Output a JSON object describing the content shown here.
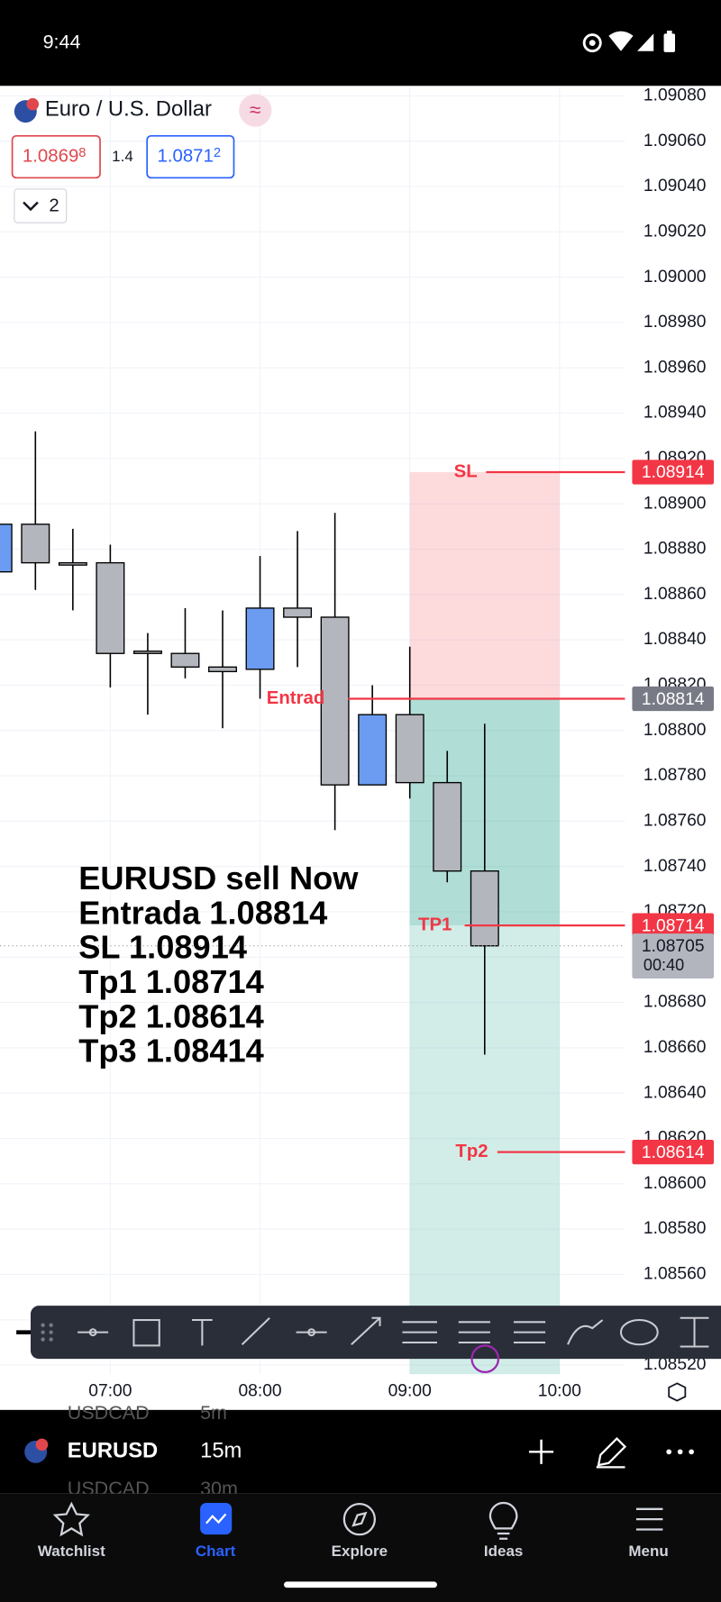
{
  "status_bar": {
    "time": "9:44"
  },
  "header": {
    "symbol_name": "Euro / U.S. Dollar",
    "bid": {
      "main": "1.0869",
      "pip": "8"
    },
    "spread": "1.4",
    "ask": {
      "main": "1.0871",
      "pip": "2"
    },
    "indicator_count": "2"
  },
  "chart_data": {
    "type": "candlestick",
    "categories": [
      null,
      null,
      null,
      null,
      "07:00",
      null,
      null,
      null,
      "08:00",
      null,
      null,
      null,
      "09:00",
      null,
      null,
      null,
      "10:00"
    ],
    "open": [
      null,
      1.0887,
      1.08891,
      1.08874,
      1.08874,
      1.08835,
      1.08834,
      1.08828,
      1.08827,
      1.08854,
      1.0885,
      1.08776,
      1.08807,
      1.08777,
      1.08738,
      null,
      null
    ],
    "high": [
      null,
      1.08893,
      1.08932,
      1.08889,
      1.08882,
      1.08843,
      1.08854,
      1.08853,
      1.08877,
      1.08888,
      1.08896,
      1.0882,
      1.08837,
      1.08791,
      1.08803,
      null,
      null
    ],
    "low": [
      null,
      1.08868,
      1.08862,
      1.08853,
      1.08819,
      1.08807,
      1.08823,
      1.08801,
      1.08814,
      1.08828,
      1.08756,
      1.08776,
      1.0877,
      1.08733,
      1.08657,
      null,
      null
    ],
    "close": [
      null,
      1.08891,
      1.08874,
      1.08873,
      1.08834,
      1.08834,
      1.08828,
      1.08826,
      1.08854,
      1.0885,
      1.08776,
      1.08807,
      1.08777,
      1.08738,
      1.08705,
      null,
      null
    ],
    "up_color": "#6b9cf1",
    "down_color": "#b4b6bd",
    "ylim": [
      1.08516,
      1.09084
    ],
    "yticks": [
      {
        "value": 1.0908,
        "label": "1.09080"
      },
      {
        "value": 1.0906,
        "label": "1.09060"
      },
      {
        "value": 1.0904,
        "label": "1.09040"
      },
      {
        "value": 1.0902,
        "label": "1.09020"
      },
      {
        "value": 1.09,
        "label": "1.09000"
      },
      {
        "value": 1.0898,
        "label": "1.08980"
      },
      {
        "value": 1.0896,
        "label": "1.08960"
      },
      {
        "value": 1.0894,
        "label": "1.08940"
      },
      {
        "value": 1.0892,
        "label": "1.08920"
      },
      {
        "value": 1.089,
        "label": "1.08900"
      },
      {
        "value": 1.0888,
        "label": "1.08880"
      },
      {
        "value": 1.0886,
        "label": "1.08860"
      },
      {
        "value": 1.0884,
        "label": "1.08840"
      },
      {
        "value": 1.0882,
        "label": "1.08820"
      },
      {
        "value": 1.088,
        "label": "1.08800"
      },
      {
        "value": 1.0878,
        "label": "1.08780"
      },
      {
        "value": 1.0876,
        "label": "1.08760"
      },
      {
        "value": 1.0874,
        "label": "1.08740"
      },
      {
        "value": 1.0872,
        "label": "1.08720"
      },
      {
        "value": 1.087,
        "label": "1.08700"
      },
      {
        "value": 1.0868,
        "label": "1.08680"
      },
      {
        "value": 1.0866,
        "label": "1.08660"
      },
      {
        "value": 1.0864,
        "label": "1.08640"
      },
      {
        "value": 1.0862,
        "label": "1.08620"
      },
      {
        "value": 1.086,
        "label": "1.08600"
      },
      {
        "value": 1.0858,
        "label": "1.08580"
      },
      {
        "value": 1.0856,
        "label": "1.08560"
      },
      {
        "value": 1.0854,
        "label": "1.08540"
      },
      {
        "value": 1.0852,
        "label": "1.08520"
      }
    ],
    "grid": true,
    "levels": [
      {
        "label": "SL",
        "value": 1.08914
      },
      {
        "label": "Entrad",
        "value": 1.08814
      },
      {
        "label": "TP1",
        "value": 1.08714
      },
      {
        "label": "Tp2",
        "value": 1.08614
      }
    ],
    "last_price": 1.08705,
    "countdown": "00:40",
    "annotation": [
      "EURUSD sell Now",
      "Entrada 1.08814",
      "SL 1.08914",
      "Tp1 1.08714",
      "Tp2 1.08614",
      "Tp3 1.08414"
    ]
  },
  "symbol_bar": {
    "symbol": "EURUSD",
    "interval": "15m",
    "prev_symbol": "USDCAD",
    "prev_interval": "5m",
    "next_symbol": "USDCAD",
    "next_interval": "30m"
  },
  "nav": [
    "Watchlist",
    "Chart",
    "Explore",
    "Ideas",
    "Menu"
  ]
}
